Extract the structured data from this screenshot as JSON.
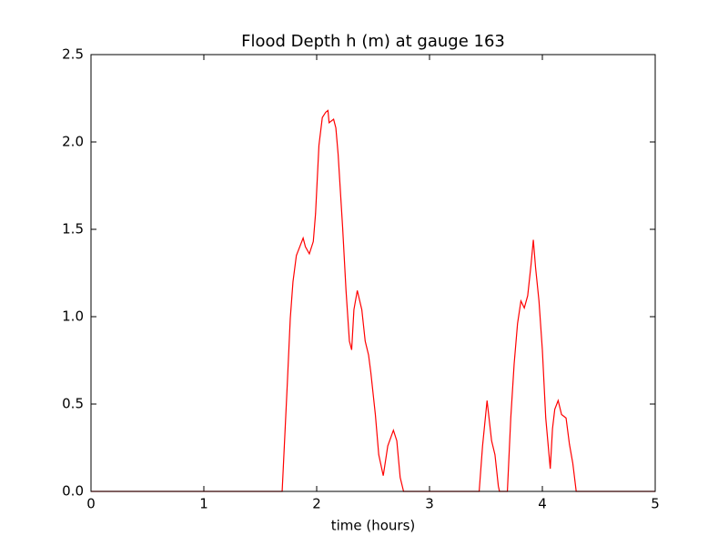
{
  "chart_data": {
    "type": "line",
    "title": "Flood Depth h (m) at gauge 163",
    "xlabel": "time (hours)",
    "x": [
      0,
      1.694,
      1.74,
      1.766,
      1.79,
      1.82,
      1.85,
      1.88,
      1.9,
      1.935,
      1.97,
      1.99,
      2.02,
      2.05,
      2.08,
      2.1,
      2.11,
      2.15,
      2.17,
      2.19,
      2.23,
      2.26,
      2.29,
      2.31,
      2.33,
      2.36,
      2.4,
      2.43,
      2.46,
      2.48,
      2.52,
      2.55,
      2.59,
      2.63,
      2.68,
      2.71,
      2.74,
      2.77,
      3.44,
      3.47,
      3.51,
      3.55,
      3.58,
      3.61,
      3.62,
      3.69,
      3.72,
      3.75,
      3.78,
      3.81,
      3.84,
      3.87,
      3.9,
      3.92,
      3.94,
      3.97,
      4.0,
      4.03,
      4.07,
      4.09,
      4.11,
      4.14,
      4.17,
      4.21,
      4.24,
      4.27,
      4.3,
      5
    ],
    "series": [
      {
        "color": "#ff0000",
        "values": [
          0,
          0,
          0.62,
          0.99,
          1.2,
          1.35,
          1.4,
          1.45,
          1.4,
          1.36,
          1.43,
          1.59,
          1.98,
          2.14,
          2.17,
          2.18,
          2.11,
          2.13,
          2.08,
          1.93,
          1.51,
          1.15,
          0.86,
          0.81,
          1.04,
          1.15,
          1.04,
          0.86,
          0.78,
          0.68,
          0.44,
          0.21,
          0.09,
          0.26,
          0.35,
          0.29,
          0.08,
          0,
          0,
          0.26,
          0.52,
          0.29,
          0.21,
          0.03,
          0,
          0,
          0.42,
          0.73,
          0.96,
          1.09,
          1.05,
          1.12,
          1.3,
          1.44,
          1.28,
          1.09,
          0.81,
          0.42,
          0.13,
          0.36,
          0.47,
          0.52,
          0.44,
          0.42,
          0.27,
          0.16,
          0,
          0
        ]
      }
    ],
    "hline": {
      "y": 0,
      "color": "#000000",
      "dashed": true
    },
    "xlim": [
      0,
      5
    ],
    "xticks": [
      0,
      1,
      2,
      3,
      4,
      5
    ],
    "ylim": [
      0,
      2.5
    ],
    "yticks": [
      {
        "value": 0,
        "label": "0.0"
      },
      0.5,
      {
        "value": 1,
        "label": "1.0"
      },
      1.5,
      {
        "value": 2,
        "label": "2.0"
      },
      2.5
    ],
    "grid": false
  }
}
